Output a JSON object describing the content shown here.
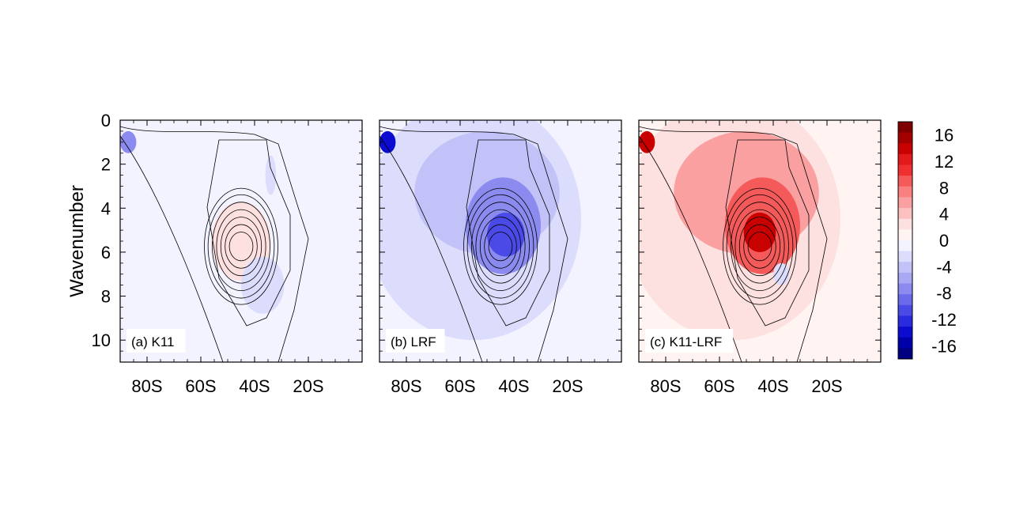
{
  "chart_data": {
    "type": "heatmap",
    "ylabel": "Wavenumber",
    "xlim": [
      -90,
      0
    ],
    "ylim": [
      0,
      11
    ],
    "y_ticks": [
      "0",
      "2",
      "4",
      "6",
      "8",
      "10"
    ],
    "x_tick_labels": [
      "80S",
      "60S",
      "40S",
      "20S"
    ],
    "x_tick_values": [
      -80,
      -60,
      -40,
      -20
    ],
    "colorbar": {
      "labels": [
        "16",
        "12",
        "8",
        "4",
        "0",
        "-4",
        "-8",
        "-12",
        "-16"
      ],
      "range": [
        -18,
        18
      ],
      "colors_top_to_bottom": [
        "#7f0000",
        "#a30000",
        "#c80000",
        "#e31a1c",
        "#f03030",
        "#f55a5a",
        "#f88080",
        "#faa0a0",
        "#fcc0c0",
        "#fde0e0",
        "#fff4f2",
        "#f3f3ff",
        "#dcdcfc",
        "#c2c2f8",
        "#a8a8f4",
        "#8a8aef",
        "#6a6aea",
        "#4a4ae6",
        "#2a2ade",
        "#0c0cd0",
        "#0000aa",
        "#000080"
      ]
    },
    "panels": [
      {
        "label": "(a) K11",
        "fill_blobs": [
          {
            "lat": -87,
            "wn": 1.0,
            "rlat": 3,
            "rwn": 0.5,
            "value": -8
          },
          {
            "lat": -45,
            "wn": 5.3,
            "rlat": 6,
            "rwn": 0.8,
            "value": 8
          },
          {
            "lat": -45,
            "wn": 5.5,
            "rlat": 11,
            "rwn": 1.8,
            "value": 3
          },
          {
            "lat": -34,
            "wn": 2.5,
            "rlat": 2,
            "rwn": 0.9,
            "value": -3
          },
          {
            "lat": -37,
            "wn": 7.5,
            "rlat": 8,
            "rwn": 1.3,
            "value": -2
          }
        ]
      },
      {
        "label": "(b) LRF",
        "fill_blobs": [
          {
            "lat": -55,
            "wn": 4.5,
            "rlat": 40,
            "rwn": 5.5,
            "value": -2
          },
          {
            "lat": -50,
            "wn": 3.3,
            "rlat": 27,
            "rwn": 2.8,
            "value": -4
          },
          {
            "lat": -44,
            "wn": 4.8,
            "rlat": 14,
            "rwn": 2.2,
            "value": -7
          },
          {
            "lat": -43,
            "wn": 5.2,
            "rlat": 7,
            "rwn": 1.0,
            "value": -11
          },
          {
            "lat": -87,
            "wn": 1.0,
            "rlat": 3,
            "rwn": 0.5,
            "value": -14
          }
        ]
      },
      {
        "label": "(c) K11-LRF",
        "fill_blobs": [
          {
            "lat": -55,
            "wn": 4.5,
            "rlat": 40,
            "rwn": 5.5,
            "value": 2
          },
          {
            "lat": -50,
            "wn": 3.3,
            "rlat": 27,
            "rwn": 2.8,
            "value": 5
          },
          {
            "lat": -44,
            "wn": 4.8,
            "rlat": 14,
            "rwn": 2.2,
            "value": 9
          },
          {
            "lat": -45,
            "wn": 5.1,
            "rlat": 6,
            "rwn": 0.9,
            "value": 14
          },
          {
            "lat": -87,
            "wn": 1.0,
            "rlat": 3,
            "rwn": 0.5,
            "value": 14
          },
          {
            "lat": -37,
            "wn": 7.0,
            "rlat": 3,
            "rwn": 0.5,
            "value": -2
          }
        ]
      }
    ],
    "contour_center": {
      "lat": -45,
      "wn": 5.2
    },
    "contour_levels": [
      0.18,
      0.32,
      0.46,
      0.6,
      0.74,
      0.88,
      1.0
    ]
  }
}
